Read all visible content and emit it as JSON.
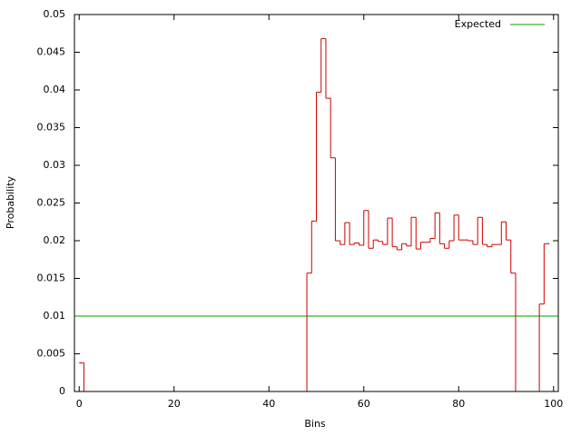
{
  "chart_data": {
    "type": "step",
    "xlabel": "Bins",
    "ylabel": "Probability",
    "x": [
      0,
      1,
      2,
      3,
      4,
      5,
      6,
      7,
      8,
      9,
      10,
      11,
      12,
      13,
      14,
      15,
      16,
      17,
      18,
      19,
      20,
      21,
      22,
      23,
      24,
      25,
      26,
      27,
      28,
      29,
      30,
      31,
      32,
      33,
      34,
      35,
      36,
      37,
      38,
      39,
      40,
      41,
      42,
      43,
      44,
      45,
      46,
      47,
      48,
      49,
      50,
      51,
      52,
      53,
      54,
      55,
      56,
      57,
      58,
      59,
      60,
      61,
      62,
      63,
      64,
      65,
      66,
      67,
      68,
      69,
      70,
      71,
      72,
      73,
      74,
      75,
      76,
      77,
      78,
      79,
      80,
      81,
      82,
      83,
      84,
      85,
      86,
      87,
      88,
      89,
      90,
      91,
      92,
      93,
      94,
      95,
      96,
      97,
      98,
      99
    ],
    "series": [
      {
        "color": "#cc0000",
        "values": [
          0.0038,
          0,
          0,
          0,
          0,
          0,
          0,
          0,
          0,
          0,
          0,
          0,
          0,
          0,
          0,
          0,
          0,
          0,
          0,
          0,
          0,
          0,
          0,
          0,
          0,
          0,
          0,
          0,
          0,
          0,
          0,
          0,
          0,
          0,
          0,
          0,
          0,
          0,
          0,
          0,
          0,
          0,
          0,
          0,
          0,
          0,
          0,
          0,
          0.0157,
          0.0226,
          0.0397,
          0.0468,
          0.0389,
          0.031,
          0.02,
          0.0195,
          0.0224,
          0.0195,
          0.0197,
          0.0194,
          0.024,
          0.019,
          0.0201,
          0.0199,
          0.0195,
          0.023,
          0.0192,
          0.0188,
          0.0196,
          0.0193,
          0.0231,
          0.0189,
          0.0198,
          0.0198,
          0.0203,
          0.0237,
          0.0196,
          0.019,
          0.02,
          0.0234,
          0.0201,
          0.0201,
          0.02,
          0.0195,
          0.0231,
          0.0195,
          0.0192,
          0.0195,
          0.0195,
          0.0225,
          0.0201,
          0.0157,
          0,
          0,
          0,
          0,
          0,
          0.0116,
          0.0196,
          0.0196
        ]
      }
    ],
    "hline": {
      "name": "Expected",
      "color": "#00a000",
      "value": 0.01
    },
    "xlim": [
      -1,
      101
    ],
    "xticks": [
      0,
      20,
      40,
      60,
      80,
      100
    ],
    "ylim": [
      0,
      0.05
    ],
    "yticks": [
      0,
      0.005,
      0.01,
      0.015,
      0.02,
      0.025,
      0.03,
      0.035,
      0.04,
      0.045,
      0.05
    ],
    "legend": "top-right"
  }
}
